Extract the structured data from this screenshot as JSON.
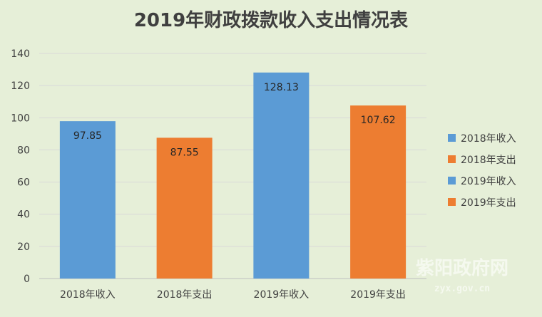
{
  "chart_data": {
    "type": "bar",
    "title": "2019年财政拨款收入支出情况表",
    "categories": [
      "2018年收入",
      "2018年支出",
      "2019年收入",
      "2019年支出"
    ],
    "values": [
      97.85,
      87.55,
      128.13,
      107.62
    ],
    "value_labels": [
      "97.85",
      "87.55",
      "128.13",
      "107.62"
    ],
    "colors": [
      "#5b9bd5",
      "#ed7d31",
      "#5b9bd5",
      "#ed7d31"
    ],
    "ylim": [
      0,
      140
    ],
    "yticks": [
      0,
      20,
      40,
      60,
      80,
      100,
      120,
      140
    ],
    "ytick_labels": [
      "0",
      "20",
      "40",
      "60",
      "80",
      "100",
      "120",
      "140"
    ],
    "grid": true,
    "legend_position": "right",
    "legend": [
      {
        "label": "2018年收入",
        "color": "#5b9bd5"
      },
      {
        "label": "2018年支出",
        "color": "#ed7d31"
      },
      {
        "label": "2019年收入",
        "color": "#5b9bd5"
      },
      {
        "label": "2019年支出",
        "color": "#ed7d31"
      }
    ]
  },
  "watermark": {
    "text": "紫阳政府网",
    "url": "zyx.gov.cn"
  }
}
